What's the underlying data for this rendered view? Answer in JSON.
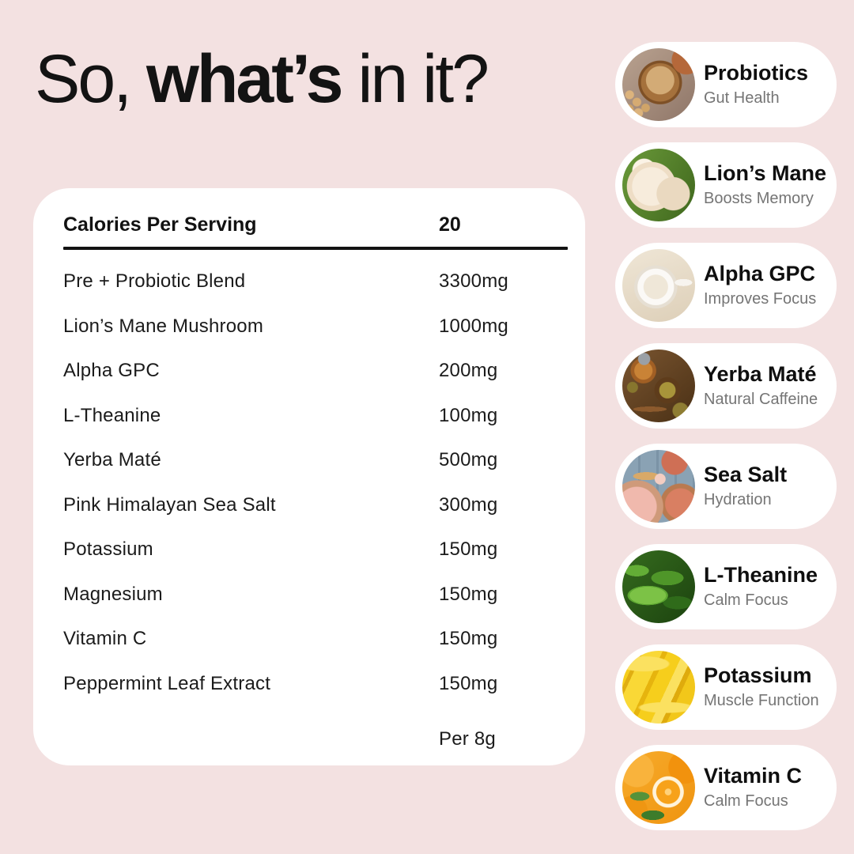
{
  "colors": {
    "background": "#f3e1e1",
    "card": "#ffffff",
    "text": "#131313",
    "subtitle_gray": "#757575"
  },
  "heading": {
    "prefix": "So, ",
    "bold": "what’s",
    "suffix": " in it?"
  },
  "table": {
    "header": {
      "label": "Calories Per Serving",
      "value": "20"
    },
    "rows": [
      {
        "label": "Pre + Probiotic Blend",
        "value": "3300mg"
      },
      {
        "label": "Lion’s Mane Mushroom",
        "value": "1000mg"
      },
      {
        "label": "Alpha GPC",
        "value": "200mg"
      },
      {
        "label": "L-Theanine",
        "value": "100mg"
      },
      {
        "label": "Yerba Maté",
        "value": "500mg"
      },
      {
        "label": "Pink Himalayan Sea Salt",
        "value": "300mg"
      },
      {
        "label": "Potassium",
        "value": "150mg"
      },
      {
        "label": "Magnesium",
        "value": "150mg"
      },
      {
        "label": "Vitamin C",
        "value": "150mg"
      },
      {
        "label": "Peppermint Leaf Extract",
        "value": "150mg"
      }
    ],
    "footnote": "Per 8g"
  },
  "ingredient_cards": [
    {
      "title": "Probiotics",
      "subtitle": "Gut Health",
      "photo": "probiotic-powder"
    },
    {
      "title": "Lion’s Mane",
      "subtitle": "Boosts Memory",
      "photo": "lions-mane-mushroom"
    },
    {
      "title": "Alpha GPC",
      "subtitle": "Improves Focus",
      "photo": "white-powder-mortar"
    },
    {
      "title": "Yerba Maté",
      "subtitle": "Natural Caffeine",
      "photo": "yerba-mate"
    },
    {
      "title": "Sea Salt",
      "subtitle": "Hydration",
      "photo": "pink-salt"
    },
    {
      "title": "L-Theanine",
      "subtitle": "Calm Focus",
      "photo": "green-tea-leaves"
    },
    {
      "title": "Potassium",
      "subtitle": "Muscle Function",
      "photo": "bananas"
    },
    {
      "title": "Vitamin C",
      "subtitle": "Calm Focus",
      "photo": "oranges"
    }
  ]
}
